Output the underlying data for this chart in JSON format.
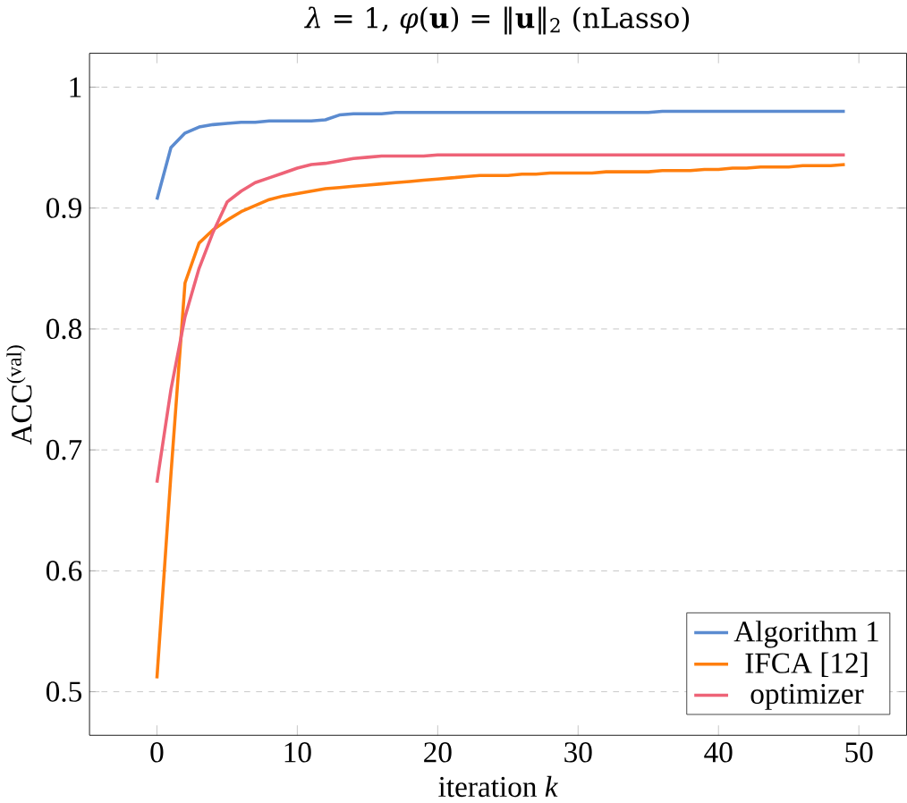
{
  "chart_data": {
    "type": "line",
    "title": "*λ* = 1, *φ*(**u**) = ‖**u**‖$_{2}$ (nLasso)",
    "xlabel": "iteration *k*",
    "ylabel": "ACC$^{(val)}$",
    "x": [
      0,
      1,
      2,
      3,
      4,
      5,
      6,
      7,
      8,
      9,
      10,
      11,
      12,
      13,
      14,
      15,
      16,
      17,
      18,
      19,
      20,
      21,
      22,
      23,
      24,
      25,
      26,
      27,
      28,
      29,
      30,
      31,
      32,
      33,
      34,
      35,
      36,
      37,
      38,
      39,
      40,
      41,
      42,
      43,
      44,
      45,
      46,
      47,
      48,
      49
    ],
    "xlim": [
      -4.8,
      53.4
    ],
    "ylim": [
      0.464,
      1.028
    ],
    "xticks": [
      0,
      10,
      20,
      30,
      40,
      50
    ],
    "yticks": [
      0.5,
      0.6,
      0.7,
      0.8,
      0.9,
      1
    ],
    "grid": "y",
    "legend": "bottom right",
    "marker": "none",
    "line_style": "solid",
    "series": [
      {
        "name": "Algorithm 1",
        "color": "#5b8bd0",
        "values": [
          0.907,
          0.95,
          0.962,
          0.967,
          0.969,
          0.97,
          0.971,
          0.971,
          0.972,
          0.972,
          0.972,
          0.972,
          0.973,
          0.977,
          0.978,
          0.978,
          0.978,
          0.979,
          0.979,
          0.979,
          0.979,
          0.979,
          0.979,
          0.979,
          0.979,
          0.979,
          0.979,
          0.979,
          0.979,
          0.979,
          0.979,
          0.979,
          0.979,
          0.979,
          0.979,
          0.979,
          0.98,
          0.98,
          0.98,
          0.98,
          0.98,
          0.98,
          0.98,
          0.98,
          0.98,
          0.98,
          0.98,
          0.98,
          0.98,
          0.98
        ]
      },
      {
        "name": "IFCA [12]",
        "color": "#ff7f0e",
        "values": [
          0.511,
          0.68,
          0.838,
          0.871,
          0.882,
          0.89,
          0.897,
          0.902,
          0.907,
          0.91,
          0.912,
          0.914,
          0.916,
          0.917,
          0.918,
          0.919,
          0.92,
          0.921,
          0.922,
          0.923,
          0.924,
          0.925,
          0.926,
          0.927,
          0.927,
          0.927,
          0.928,
          0.928,
          0.929,
          0.929,
          0.929,
          0.929,
          0.93,
          0.93,
          0.93,
          0.93,
          0.931,
          0.931,
          0.931,
          0.932,
          0.932,
          0.933,
          0.933,
          0.934,
          0.934,
          0.934,
          0.935,
          0.935,
          0.935,
          0.936
        ]
      },
      {
        "name": "optimizer",
        "color": "#ee6377",
        "values": [
          0.673,
          0.75,
          0.81,
          0.85,
          0.88,
          0.905,
          0.914,
          0.921,
          0.925,
          0.929,
          0.933,
          0.936,
          0.937,
          0.939,
          0.941,
          0.942,
          0.943,
          0.943,
          0.943,
          0.943,
          0.944,
          0.944,
          0.944,
          0.944,
          0.944,
          0.944,
          0.944,
          0.944,
          0.944,
          0.944,
          0.944,
          0.944,
          0.944,
          0.944,
          0.944,
          0.944,
          0.944,
          0.944,
          0.944,
          0.944,
          0.944,
          0.944,
          0.944,
          0.944,
          0.944,
          0.944,
          0.944,
          0.944,
          0.944,
          0.944
        ]
      }
    ]
  }
}
